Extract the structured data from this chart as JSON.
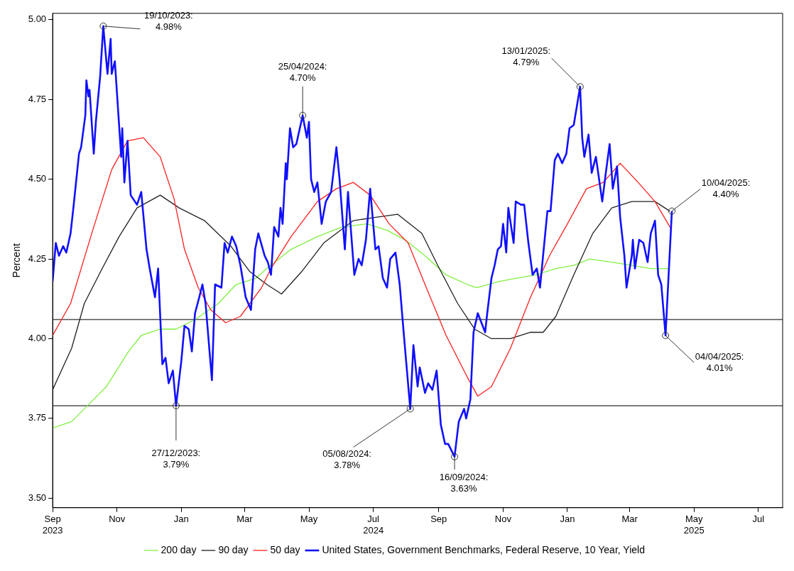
{
  "chart_data": {
    "type": "line",
    "ylabel": "Percent",
    "xlim": [
      "2023-09-01",
      "2025-07-24"
    ],
    "ylim": [
      3.47,
      5.02
    ],
    "xticks": [
      {
        "value": "2023-09-01",
        "label": "Sep\n2023"
      },
      {
        "value": "2023-11-01",
        "label": "Nov"
      },
      {
        "value": "2024-01-01",
        "label": "Jan"
      },
      {
        "value": "2024-03-01",
        "label": "Mar"
      },
      {
        "value": "2024-05-01",
        "label": "May"
      },
      {
        "value": "2024-07-01",
        "label": "Jul\n2024"
      },
      {
        "value": "2024-09-01",
        "label": "Sep"
      },
      {
        "value": "2024-11-01",
        "label": "Nov"
      },
      {
        "value": "2025-01-01",
        "label": "Jan"
      },
      {
        "value": "2025-03-01",
        "label": "Mar"
      },
      {
        "value": "2025-05-01",
        "label": "May\n2025"
      },
      {
        "value": "2025-07-01",
        "label": "Jul"
      }
    ],
    "yticks": [
      {
        "value": 3.5,
        "label": "3.50"
      },
      {
        "value": 3.75,
        "label": "3.75"
      },
      {
        "value": 4,
        "label": "4.00"
      },
      {
        "value": 4.25,
        "label": "4.25"
      },
      {
        "value": 4.5,
        "label": "4.50"
      },
      {
        "value": 4.75,
        "label": "4.75"
      },
      {
        "value": 5,
        "label": "5.00"
      }
    ],
    "grid": false,
    "legend": "bottom",
    "marker": "none",
    "line_style": "solid",
    "series": [
      {
        "name": "200 day",
        "color": "#80f040",
        "x": [
          "2023-09-01",
          "2023-09-19",
          "2023-10-07",
          "2023-10-22",
          "2023-11-12",
          "2023-11-24",
          "2023-12-12",
          "2023-12-27",
          "2024-01-14",
          "2024-02-05",
          "2024-02-22",
          "2024-03-12",
          "2024-03-22",
          "2024-04-14",
          "2024-05-09",
          "2024-06-01",
          "2024-06-25",
          "2024-07-14",
          "2024-07-31",
          "2024-08-19",
          "2024-09-08",
          "2024-09-28",
          "2024-10-07",
          "2024-10-29",
          "2024-11-14",
          "2024-12-02",
          "2024-12-21",
          "2025-01-07",
          "2025-01-22",
          "2025-02-12",
          "2025-03-03",
          "2025-03-21",
          "2025-04-08"
        ],
        "values": [
          3.72,
          3.74,
          3.8,
          3.85,
          3.96,
          4.01,
          4.03,
          4.03,
          4.06,
          4.11,
          4.17,
          4.19,
          4.22,
          4.28,
          4.32,
          4.35,
          4.36,
          4.34,
          4.31,
          4.26,
          4.2,
          4.17,
          4.16,
          4.18,
          4.19,
          4.2,
          4.22,
          4.23,
          4.25,
          4.24,
          4.23,
          4.22,
          4.22
        ]
      },
      {
        "name": "90 day",
        "color": "#202020",
        "x": [
          "2023-09-01",
          "2023-09-19",
          "2023-10-01",
          "2023-10-18",
          "2023-11-03",
          "2023-11-20",
          "2023-12-12",
          "2023-12-30",
          "2024-01-23",
          "2024-02-17",
          "2024-03-06",
          "2024-03-22",
          "2024-04-05",
          "2024-04-24",
          "2024-05-15",
          "2024-06-12",
          "2024-07-02",
          "2024-07-24",
          "2024-08-16",
          "2024-08-31",
          "2024-09-19",
          "2024-10-05",
          "2024-10-21",
          "2024-11-08",
          "2024-11-27",
          "2024-12-09",
          "2024-12-21",
          "2025-01-07",
          "2025-01-25",
          "2025-02-12",
          "2025-03-03",
          "2025-03-25",
          "2025-04-08"
        ],
        "values": [
          3.84,
          3.97,
          4.11,
          4.22,
          4.32,
          4.41,
          4.45,
          4.41,
          4.37,
          4.29,
          4.21,
          4.17,
          4.14,
          4.21,
          4.3,
          4.37,
          4.38,
          4.39,
          4.33,
          4.23,
          4.11,
          4.03,
          4.0,
          4.0,
          4.02,
          4.02,
          4.07,
          4.2,
          4.33,
          4.41,
          4.43,
          4.43,
          4.4
        ]
      },
      {
        "name": "50 day",
        "color": "#ff2020",
        "x": [
          "2023-09-01",
          "2023-09-18",
          "2023-10-09",
          "2023-10-27",
          "2023-11-11",
          "2023-11-26",
          "2023-12-12",
          "2023-12-25",
          "2024-01-04",
          "2024-01-17",
          "2024-01-29",
          "2024-02-12",
          "2024-02-26",
          "2024-03-17",
          "2024-03-26",
          "2024-04-14",
          "2024-05-09",
          "2024-05-27",
          "2024-06-12",
          "2024-06-28",
          "2024-07-16",
          "2024-08-03",
          "2024-08-19",
          "2024-09-08",
          "2024-09-28",
          "2024-10-08",
          "2024-10-21",
          "2024-11-08",
          "2024-11-27",
          "2024-12-15",
          "2025-01-01",
          "2025-01-19",
          "2025-02-04",
          "2025-02-20",
          "2025-03-09",
          "2025-03-25",
          "2025-04-10"
        ],
        "values": [
          4.01,
          4.11,
          4.34,
          4.53,
          4.62,
          4.63,
          4.57,
          4.44,
          4.28,
          4.16,
          4.09,
          4.05,
          4.07,
          4.16,
          4.22,
          4.32,
          4.43,
          4.47,
          4.49,
          4.45,
          4.36,
          4.3,
          4.17,
          4.01,
          3.88,
          3.82,
          3.85,
          3.97,
          4.13,
          4.26,
          4.36,
          4.47,
          4.49,
          4.55,
          4.49,
          4.43,
          4.34
        ]
      },
      {
        "name": "United States, Government Benchmarks, Federal Reserve, 10 Year, Yield",
        "color": "#1010ff",
        "x": [
          "2023-09-01",
          "2023-09-04",
          "2023-09-07",
          "2023-09-11",
          "2023-09-14",
          "2023-09-18",
          "2023-09-21",
          "2023-09-26",
          "2023-09-28",
          "2023-10-02",
          "2023-10-03",
          "2023-10-05",
          "2023-10-06",
          "2023-10-10",
          "2023-10-12",
          "2023-10-16",
          "2023-10-19",
          "2023-10-23",
          "2023-10-26",
          "2023-10-27",
          "2023-10-30",
          "2023-11-05",
          "2023-11-06",
          "2023-11-08",
          "2023-11-11",
          "2023-11-14",
          "2023-11-20",
          "2023-11-24",
          "2023-11-29",
          "2023-12-02",
          "2023-12-07",
          "2023-12-10",
          "2023-12-14",
          "2023-12-17",
          "2023-12-20",
          "2023-12-24",
          "2023-12-27",
          "2024-01-01",
          "2024-01-04",
          "2024-01-08",
          "2024-01-11",
          "2024-01-14",
          "2024-01-18",
          "2024-01-21",
          "2024-01-24",
          "2024-01-30",
          "2024-02-02",
          "2024-02-08",
          "2024-02-11",
          "2024-02-14",
          "2024-02-18",
          "2024-02-22",
          "2024-02-26",
          "2024-03-02",
          "2024-03-07",
          "2024-03-11",
          "2024-03-14",
          "2024-03-20",
          "2024-03-23",
          "2024-03-26",
          "2024-03-29",
          "2024-04-02",
          "2024-04-04",
          "2024-04-06",
          "2024-04-09",
          "2024-04-10",
          "2024-04-13",
          "2024-04-16",
          "2024-04-19",
          "2024-04-25",
          "2024-04-29",
          "2024-05-01",
          "2024-05-03",
          "2024-05-06",
          "2024-05-09",
          "2024-05-13",
          "2024-05-17",
          "2024-05-22",
          "2024-05-27",
          "2024-05-30",
          "2024-06-04",
          "2024-06-07",
          "2024-06-13",
          "2024-06-17",
          "2024-06-20",
          "2024-06-24",
          "2024-06-28",
          "2024-07-03",
          "2024-07-06",
          "2024-07-10",
          "2024-07-14",
          "2024-07-17",
          "2024-07-22",
          "2024-07-26",
          "2024-07-30",
          "2024-08-05",
          "2024-08-08",
          "2024-08-12",
          "2024-08-14",
          "2024-08-19",
          "2024-08-22",
          "2024-08-26",
          "2024-08-30",
          "2024-09-03",
          "2024-09-07",
          "2024-09-10",
          "2024-09-16",
          "2024-09-20",
          "2024-09-25",
          "2024-09-27",
          "2024-10-01",
          "2024-10-04",
          "2024-10-08",
          "2024-10-15",
          "2024-10-17",
          "2024-10-21",
          "2024-10-24",
          "2024-10-27",
          "2024-10-30",
          "2024-11-01",
          "2024-11-04",
          "2024-11-06",
          "2024-11-11",
          "2024-11-13",
          "2024-11-18",
          "2024-11-21",
          "2024-11-25",
          "2024-11-29",
          "2024-12-03",
          "2024-12-06",
          "2024-12-13",
          "2024-12-16",
          "2024-12-20",
          "2024-12-23",
          "2024-12-27",
          "2024-12-31",
          "2025-01-03",
          "2025-01-07",
          "2025-01-13",
          "2025-01-15",
          "2025-01-17",
          "2025-01-21",
          "2025-01-24",
          "2025-01-28",
          "2025-02-03",
          "2025-02-06",
          "2025-02-10",
          "2025-02-13",
          "2025-02-17",
          "2025-02-20",
          "2025-02-24",
          "2025-02-26",
          "2025-03-03",
          "2025-03-04",
          "2025-03-06",
          "2025-03-10",
          "2025-03-14",
          "2025-03-18",
          "2025-03-21",
          "2025-03-25",
          "2025-03-28",
          "2025-03-31",
          "2025-04-04",
          "2025-04-10"
        ],
        "values": [
          4.18,
          4.3,
          4.26,
          4.29,
          4.27,
          4.33,
          4.42,
          4.58,
          4.6,
          4.7,
          4.81,
          4.76,
          4.78,
          4.58,
          4.68,
          4.82,
          4.98,
          4.83,
          4.94,
          4.83,
          4.87,
          4.57,
          4.66,
          4.49,
          4.62,
          4.45,
          4.42,
          4.46,
          4.28,
          4.22,
          4.13,
          4.22,
          3.92,
          3.94,
          3.86,
          3.9,
          3.79,
          3.93,
          4.04,
          4.03,
          3.96,
          4.08,
          4.13,
          4.17,
          4.11,
          3.87,
          4.17,
          4.16,
          4.3,
          4.27,
          4.32,
          4.29,
          4.23,
          4.13,
          4.09,
          4.28,
          4.33,
          4.26,
          4.24,
          4.2,
          4.35,
          4.32,
          4.41,
          4.36,
          4.55,
          4.5,
          4.66,
          4.6,
          4.61,
          4.7,
          4.63,
          4.68,
          4.5,
          4.46,
          4.49,
          4.36,
          4.43,
          4.46,
          4.6,
          4.5,
          4.28,
          4.46,
          4.2,
          4.25,
          4.23,
          4.31,
          4.47,
          4.28,
          4.29,
          4.19,
          4.16,
          4.25,
          4.27,
          4.17,
          4.01,
          3.78,
          3.98,
          3.85,
          3.91,
          3.83,
          3.86,
          3.84,
          3.9,
          3.73,
          3.67,
          3.67,
          3.63,
          3.74,
          3.78,
          3.75,
          3.81,
          4.02,
          4.08,
          4.02,
          4.08,
          4.19,
          4.23,
          4.28,
          4.29,
          4.36,
          4.27,
          4.41,
          4.3,
          4.43,
          4.42,
          4.42,
          4.3,
          4.2,
          4.22,
          4.16,
          4.4,
          4.4,
          4.56,
          4.58,
          4.55,
          4.58,
          4.66,
          4.67,
          4.79,
          4.63,
          4.57,
          4.64,
          4.52,
          4.57,
          4.43,
          4.51,
          4.61,
          4.47,
          4.54,
          4.38,
          4.26,
          4.16,
          4.26,
          4.31,
          4.22,
          4.31,
          4.3,
          4.24,
          4.33,
          4.37,
          4.2,
          4.17,
          4.01,
          4.4
        ]
      }
    ],
    "ref_lines": [
      {
        "axis": "y",
        "value": 4.06,
        "color": "#505050"
      },
      {
        "axis": "y",
        "value": 3.79,
        "color": "#505050"
      }
    ],
    "annotations": [
      {
        "text": "19/10/2023:\n4.98%",
        "x": "2023-10-19",
        "y": 4.98
      },
      {
        "text": "27/12/2023:\n3.79%",
        "x": "2023-12-27",
        "y": 3.79
      },
      {
        "text": "25/04/2024:\n4.70%",
        "x": "2024-04-25",
        "y": 4.7
      },
      {
        "text": "05/08/2024:\n3.78%",
        "x": "2024-08-05",
        "y": 3.78
      },
      {
        "text": "16/09/2024:\n3.63%",
        "x": "2024-09-16",
        "y": 3.63
      },
      {
        "text": "13/01/2025:\n4.79%",
        "x": "2025-01-13",
        "y": 4.79
      },
      {
        "text": "04/04/2025:\n4.01%",
        "x": "2025-04-04",
        "y": 4.01
      },
      {
        "text": "10/04/2025:\n4.40%",
        "x": "2025-04-10",
        "y": 4.4
      }
    ]
  }
}
